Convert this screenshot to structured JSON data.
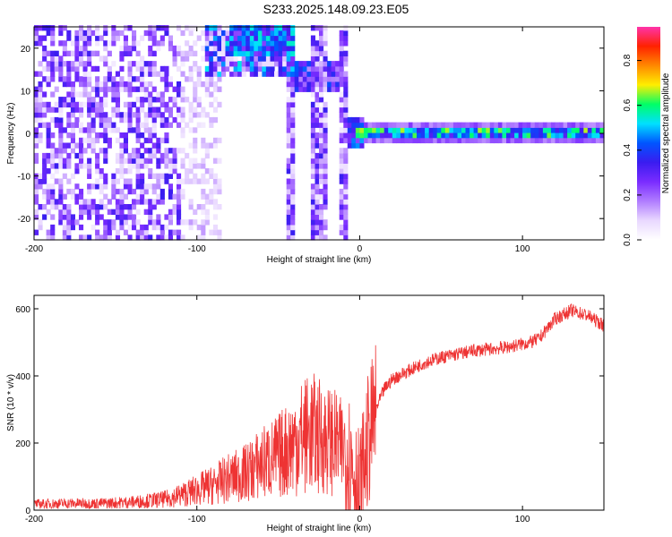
{
  "figure_title": "S233.2025.148.09.23.E05",
  "colors": {
    "snr_line": "#ee3333",
    "colormap": [
      "#ffffff",
      "#e9d8ff",
      "#b07cff",
      "#7a2cff",
      "#3a1cf0",
      "#0055ff",
      "#00e0ff",
      "#00ff66",
      "#ffee00",
      "#ff8800",
      "#ff2200",
      "#ff33aa"
    ]
  },
  "chart_data": [
    {
      "id": "spectrogram",
      "type": "heatmap",
      "title": "",
      "xlabel": "Height of straight line (km)",
      "ylabel": "Frequency (Hz)",
      "xlim": [
        -200,
        150
      ],
      "ylim": [
        -25,
        25
      ],
      "xticks": [
        -200,
        -100,
        0,
        100
      ],
      "xtick_labels": [
        "-200",
        "-100",
        "0",
        "100"
      ],
      "yticks": [
        -20,
        -10,
        0,
        10,
        20
      ],
      "ytick_labels": [
        "-20",
        "-10",
        "0",
        "10",
        "20"
      ],
      "colorbar": {
        "label": "Normalized spectral amplitude",
        "range": [
          0,
          0.95
        ],
        "ticks": [
          0,
          0.2,
          0.4,
          0.6,
          0.8
        ],
        "tick_labels": [
          "0.0",
          "0.2",
          "0.4",
          "0.6",
          "0.8"
        ]
      },
      "regions": [
        {
          "x_range": [
            -200,
            -120
          ],
          "description": "scattered low-amplitude noise",
          "amplitude": 0.1
        },
        {
          "x_range": [
            -75,
            -40
          ],
          "freq_range": [
            15,
            25
          ],
          "amplitude": 0.3
        },
        {
          "x_range": [
            -40,
            -10
          ],
          "freq_range": [
            10,
            16
          ],
          "amplitude": 0.25
        },
        {
          "x_range": [
            -5,
            150
          ],
          "freq_center": 0.3,
          "amplitude": 0.5
        }
      ]
    },
    {
      "id": "snr",
      "type": "line",
      "title": "",
      "xlabel": "Height of straight line (km)",
      "ylabel": "SNR (10 * v/v)",
      "xlim": [
        -200,
        150
      ],
      "ylim": [
        0,
        640
      ],
      "xticks": [
        -200,
        -100,
        0,
        100
      ],
      "xtick_labels": [
        "-200",
        "-100",
        "0",
        "100"
      ],
      "yticks": [
        0,
        200,
        400,
        600
      ],
      "ytick_labels": [
        "0",
        "200",
        "400",
        "600"
      ],
      "series": [
        {
          "x": [
            -200,
            -180,
            -160,
            -140,
            -120,
            -110,
            -100,
            -90,
            -80,
            -70,
            -60,
            -50,
            -45,
            -40,
            -35,
            -30,
            -25,
            -20,
            -15,
            -10,
            -5,
            0,
            5,
            10,
            15,
            20,
            30,
            40,
            50,
            60,
            70,
            80,
            90,
            100,
            105,
            110,
            115,
            120,
            130,
            140,
            150
          ],
          "y": [
            18,
            20,
            20,
            24,
            32,
            45,
            60,
            75,
            95,
            110,
            140,
            160,
            180,
            200,
            220,
            230,
            220,
            210,
            200,
            180,
            150,
            40,
            200,
            300,
            360,
            390,
            415,
            440,
            455,
            465,
            475,
            480,
            485,
            495,
            500,
            510,
            540,
            570,
            595,
            580,
            550
          ]
        }
      ]
    }
  ]
}
